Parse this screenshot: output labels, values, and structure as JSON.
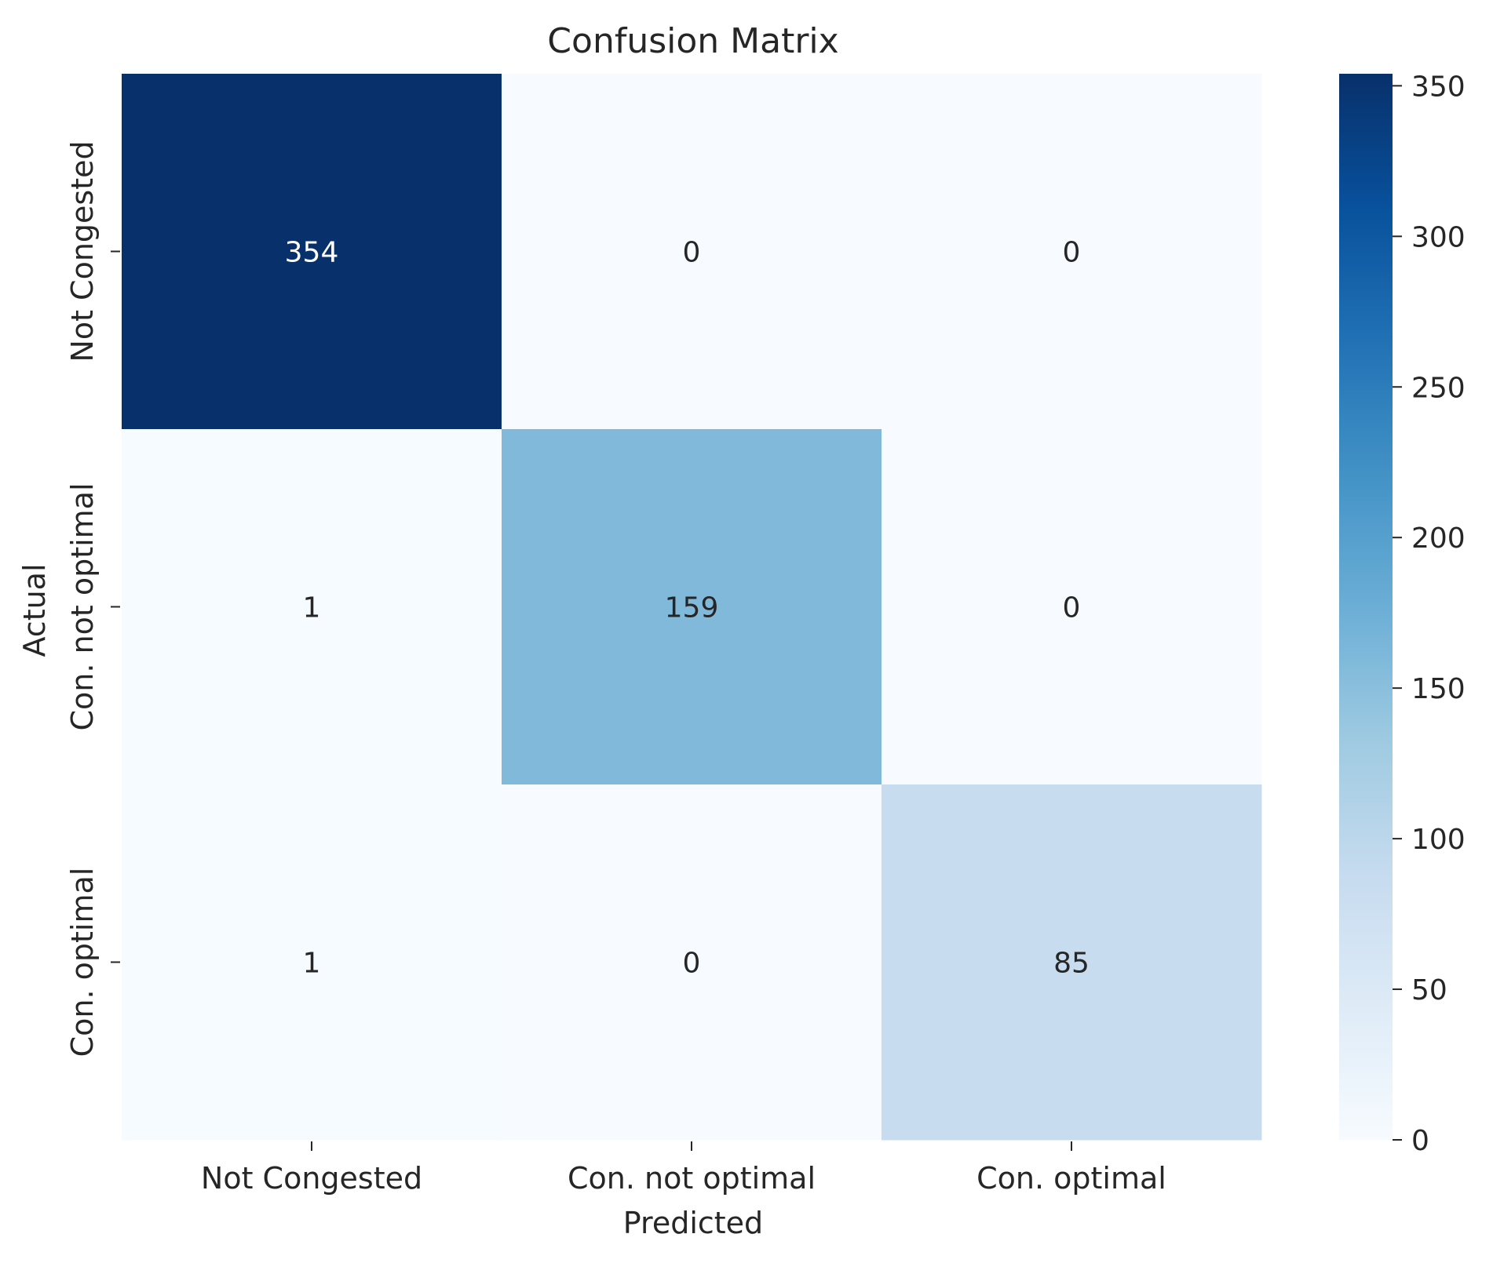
{
  "chart_data": {
    "type": "heatmap",
    "title": "Confusion Matrix",
    "xlabel": "Predicted",
    "ylabel": "Actual",
    "x_categories": [
      "Not Congested",
      "Con. not optimal",
      "Con. optimal"
    ],
    "y_categories": [
      "Not Congested",
      "Con. not optimal",
      "Con. optimal"
    ],
    "matrix": [
      [
        354,
        0,
        0
      ],
      [
        1,
        159,
        0
      ],
      [
        1,
        0,
        85
      ]
    ],
    "value_range": [
      0,
      354
    ],
    "colormap": "Blues",
    "colorbar_ticks": [
      0,
      50,
      100,
      150,
      200,
      250,
      300,
      350
    ],
    "colors": {
      "low": "#f7fbff",
      "high": "#08306b",
      "text_dark": "#262626",
      "text_light": "#ffffff"
    }
  }
}
